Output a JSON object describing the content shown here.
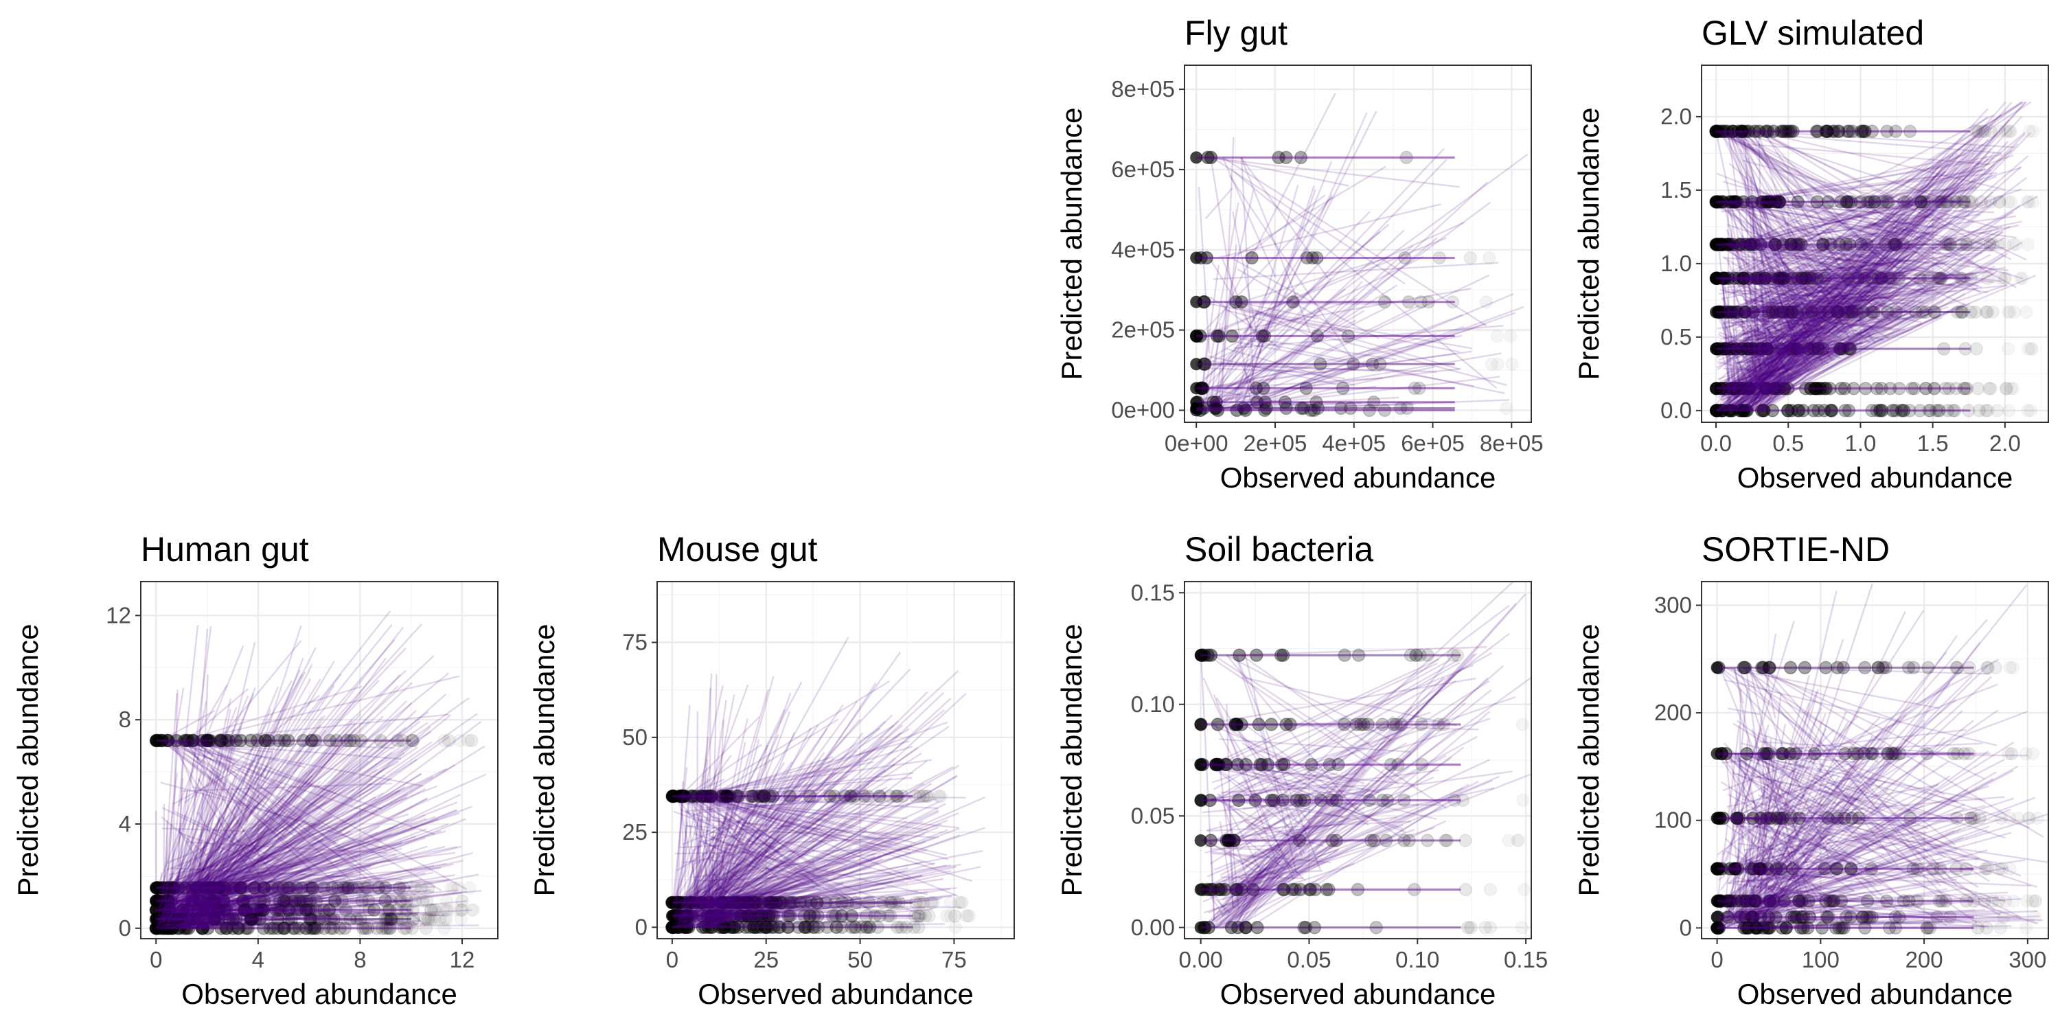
{
  "colors": {
    "prediction_line": "#4b0082",
    "observed_point": "#000000",
    "grid": "#ebebeb",
    "frame": "#333333",
    "tick_text": "#4d4d4d"
  },
  "chart_data": [
    {
      "type": "scatter",
      "title": "Fly gut",
      "xlabel": "Observed abundance",
      "ylabel": "Predicted abundance",
      "xlim": [
        -30000,
        850000
      ],
      "ylim": [
        -30000,
        860000
      ],
      "xticks": [
        0,
        200000,
        400000,
        600000,
        800000
      ],
      "xtick_labels": [
        "0e+00",
        "2e+05",
        "4e+05",
        "6e+05",
        "8e+05"
      ],
      "yticks": [
        0,
        200000,
        400000,
        600000,
        800000
      ],
      "ytick_labels": [
        "0e+00",
        "2e+05",
        "4e+05",
        "6e+05",
        "8e+05"
      ],
      "grid": true,
      "predicted_levels": [
        0,
        5000,
        20000,
        55000,
        115000,
        185000,
        270000,
        380000,
        630000
      ],
      "x_max": 820000,
      "line_count": 120,
      "point_count": 90
    },
    {
      "type": "scatter",
      "title": "GLV simulated",
      "xlabel": "Observed abundance",
      "ylabel": "Predicted abundance",
      "xlim": [
        -0.1,
        2.3
      ],
      "ylim": [
        -0.08,
        2.35
      ],
      "xticks": [
        0,
        0.5,
        1,
        1.5,
        2
      ],
      "xtick_labels": [
        "0.0",
        "0.5",
        "1.0",
        "1.5",
        "2.0"
      ],
      "yticks": [
        0,
        0.5,
        1,
        1.5,
        2
      ],
      "ytick_labels": [
        "0.0",
        "0.5",
        "1.0",
        "1.5",
        "2.0"
      ],
      "grid": true,
      "predicted_levels": [
        0,
        0.15,
        0.42,
        0.67,
        0.9,
        1.13,
        1.42,
        1.9
      ],
      "x_max": 2.2,
      "line_count": 700,
      "point_count": 500
    },
    {
      "type": "scatter",
      "title": "Human gut",
      "xlabel": "Observed abundance",
      "ylabel": "Predicted abundance",
      "xlim": [
        -0.6,
        13.4
      ],
      "ylim": [
        -0.4,
        13.3
      ],
      "xticks": [
        0,
        4,
        8,
        12
      ],
      "xtick_labels": [
        "0",
        "4",
        "8",
        "12"
      ],
      "yticks": [
        0,
        4,
        8,
        12
      ],
      "ytick_labels": [
        "0",
        "4",
        "8",
        "12"
      ],
      "grid": true,
      "predicted_levels": [
        0,
        0.35,
        0.7,
        1.05,
        1.55,
        7.2
      ],
      "x_max": 12.5,
      "line_count": 500,
      "point_count": 400
    },
    {
      "type": "scatter",
      "title": "Mouse gut",
      "xlabel": "Observed abundance",
      "ylabel": "Predicted abundance",
      "xlim": [
        -4,
        91
      ],
      "ylim": [
        -3,
        91
      ],
      "xticks": [
        0,
        25,
        50,
        75
      ],
      "xtick_labels": [
        "0",
        "25",
        "50",
        "75"
      ],
      "yticks": [
        0,
        25,
        50,
        75
      ],
      "ytick_labels": [
        "0",
        "25",
        "50",
        "75"
      ],
      "grid": true,
      "predicted_levels": [
        0,
        3,
        6.5,
        34.5
      ],
      "x_max": 80,
      "line_count": 400,
      "point_count": 300
    },
    {
      "type": "scatter",
      "title": "Soil bacteria",
      "xlabel": "Observed abundance",
      "ylabel": "Predicted abundance",
      "xlim": [
        -0.0075,
        0.1525
      ],
      "ylim": [
        -0.005,
        0.155
      ],
      "xticks": [
        0,
        0.05,
        0.1,
        0.15
      ],
      "xtick_labels": [
        "0.00",
        "0.05",
        "0.10",
        "0.15"
      ],
      "yticks": [
        0,
        0.05,
        0.1,
        0.15
      ],
      "ytick_labels": [
        "0.00",
        "0.05",
        "0.10",
        "0.15"
      ],
      "grid": true,
      "predicted_levels": [
        0,
        0.017,
        0.039,
        0.057,
        0.073,
        0.091,
        0.122
      ],
      "x_max": 0.15,
      "line_count": 200,
      "point_count": 150
    },
    {
      "type": "scatter",
      "title": "SORTIE-ND",
      "xlabel": "Observed abundance",
      "ylabel": "Predicted abundance",
      "xlim": [
        -15,
        320
      ],
      "ylim": [
        -10,
        322
      ],
      "xticks": [
        0,
        100,
        200,
        300
      ],
      "xtick_labels": [
        "0",
        "100",
        "200",
        "300"
      ],
      "yticks": [
        0,
        100,
        200,
        300
      ],
      "ytick_labels": [
        "0",
        "100",
        "200",
        "300"
      ],
      "grid": true,
      "predicted_levels": [
        0,
        10,
        25,
        55,
        102,
        162,
        242
      ],
      "x_max": 310,
      "line_count": 350,
      "point_count": 250
    }
  ]
}
